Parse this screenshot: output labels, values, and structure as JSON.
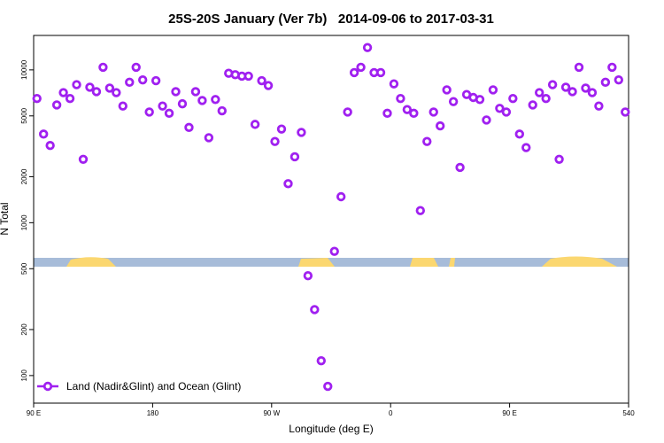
{
  "chart_data": {
    "type": "scatter",
    "title": "25S-20S January (Ver 7b)   2014-09-06 to 2017-03-31",
    "x_label": "Longitude (deg E)",
    "y_label": "N Total",
    "log_y": true,
    "legend_position": "lower left",
    "xlim": [
      90,
      540
    ],
    "xticks": [
      {
        "value": 90,
        "label": "90 E"
      },
      180,
      {
        "value": 270,
        "label": "90 W"
      },
      {
        "value": 360,
        "label": "0"
      },
      {
        "value": 450,
        "label": "90 E"
      },
      540
    ],
    "ylim": [
      66,
      16800
    ],
    "yticks": [
      100,
      200,
      500,
      1000,
      2000,
      5000,
      10000
    ],
    "series": [
      {
        "name": "Land (Nadir&Glint) and Ocean (Glint)",
        "color": "#a020f0",
        "x": [
          92.5,
          97.5,
          102.5,
          107.5,
          112.5,
          117.5,
          122.5,
          127.5,
          132.5,
          137.5,
          142.5,
          147.5,
          152.5,
          157.5,
          162.5,
          167.5,
          172.5,
          177.5,
          182.5,
          187.5,
          192.5,
          197.5,
          202.5,
          207.5,
          212.5,
          217.5,
          222.5,
          227.5,
          232.5,
          237.5,
          242.5,
          247.5,
          252.5,
          257.5,
          262.5,
          267.5,
          272.5,
          277.5,
          282.5,
          287.5,
          292.5,
          297.5,
          302.5,
          307.5,
          312.5,
          317.5,
          322.5,
          327.5,
          332.5,
          337.5,
          342.5,
          347.5,
          352.5,
          357.5,
          362.5,
          367.5,
          372.5,
          377.5,
          382.5,
          387.5,
          392.5,
          397.5,
          402.5,
          407.5,
          412.5,
          417.5,
          422.5,
          427.5,
          432.5,
          437.5,
          442.5,
          447.5,
          452.5,
          457.5,
          462.5,
          467.5,
          472.5,
          477.5,
          482.5,
          487.5,
          492.5,
          497.5,
          502.5,
          507.5,
          512.5,
          517.5,
          522.5,
          527.5,
          532.5,
          537.5
        ],
        "values": [
          6500,
          3800,
          3200,
          5900,
          7100,
          6500,
          8000,
          2600,
          7700,
          7200,
          10400,
          7600,
          7100,
          5800,
          8300,
          10400,
          8600,
          5300,
          8500,
          5800,
          5200,
          7200,
          6000,
          4200,
          7200,
          6300,
          3600,
          6400,
          5400,
          9500,
          9300,
          9100,
          9100,
          4400,
          8500,
          7900,
          3400,
          4100,
          1800,
          2700,
          3900,
          450,
          270,
          125,
          85,
          650,
          1480,
          5300,
          9600,
          10400,
          14000,
          9600,
          9600,
          5200,
          8100,
          6500,
          5500,
          5200,
          1200,
          3400,
          5300,
          4300,
          7400,
          6200,
          2300,
          6900,
          6600,
          6400,
          4700,
          7400,
          5600,
          5300,
          6500,
          3800,
          3100,
          5900,
          7100,
          6500,
          8000,
          2600,
          7700,
          7200,
          10400,
          7600,
          7100,
          5800,
          8300,
          10400,
          8600,
          5300
        ]
      }
    ]
  }
}
